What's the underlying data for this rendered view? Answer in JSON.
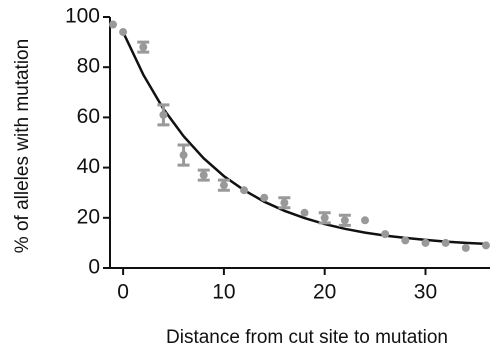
{
  "chart_data": {
    "type": "scatter",
    "xlabel": "Distance from cut site to mutation",
    "ylabel": "% of alleles with mutation",
    "x": [
      -1,
      0,
      2,
      4,
      6,
      8,
      10,
      12,
      14,
      16,
      18,
      20,
      22,
      24,
      26,
      28,
      30,
      32,
      34,
      36
    ],
    "series": [
      {
        "color": "#999999",
        "values": [
          97,
          94,
          88,
          61,
          45,
          37,
          33,
          31,
          28,
          26,
          22,
          20,
          19,
          19,
          13.5,
          11,
          10,
          10,
          8,
          9
        ],
        "errors": [
          null,
          null,
          2,
          4,
          4,
          2,
          2,
          null,
          null,
          2,
          null,
          2,
          2,
          null,
          null,
          null,
          null,
          null,
          null,
          null
        ]
      }
    ],
    "fit": {
      "color": "#111111",
      "x": [
        0,
        2,
        4,
        6,
        8,
        10,
        12,
        14,
        16,
        18,
        20,
        22,
        24,
        26,
        28,
        30,
        32,
        34,
        36
      ],
      "values": [
        94,
        77.0,
        63.4,
        52.5,
        43.7,
        36.6,
        31.0,
        26.4,
        22.8,
        19.9,
        17.5,
        15.6,
        14.1,
        12.9,
        12.0,
        11.2,
        10.5,
        10.0,
        9.6
      ]
    },
    "xlim": [
      -1.3,
      36.4
    ],
    "ylim": [
      0,
      100
    ],
    "xticks": [
      0,
      10,
      20,
      30
    ],
    "yticks": [
      0,
      20,
      40,
      60,
      80,
      100
    ],
    "grid": false
  }
}
